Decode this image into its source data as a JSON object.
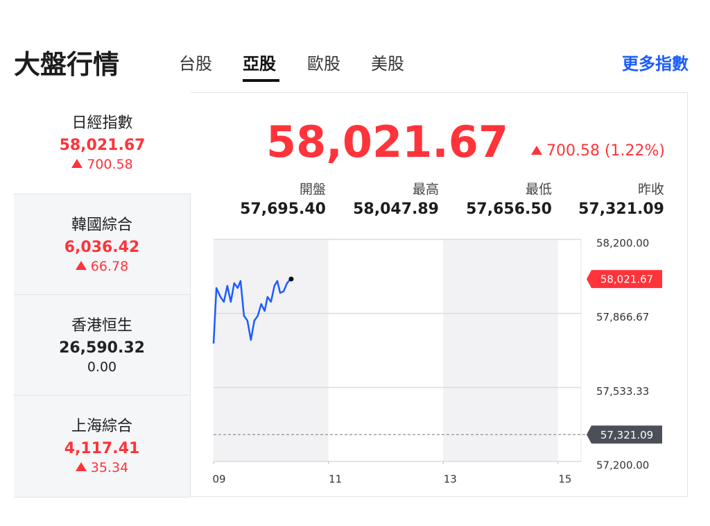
{
  "header": {
    "title": "大盤行情",
    "tabs": [
      "台股",
      "亞股",
      "歐股",
      "美股"
    ],
    "selected_tab": 1,
    "more_link": "更多指數"
  },
  "indices": [
    {
      "name": "日經指數",
      "value": "58,021.67",
      "change": "700.58",
      "direction": "up"
    },
    {
      "name": "韓國綜合",
      "value": "6,036.42",
      "change": "66.78",
      "direction": "up"
    },
    {
      "name": "香港恒生",
      "value": "26,590.32",
      "change": "0.00",
      "direction": "flat"
    },
    {
      "name": "上海綜合",
      "value": "4,117.41",
      "change": "35.34",
      "direction": "up"
    }
  ],
  "selected_index": 0,
  "quote": {
    "price": "58,021.67",
    "change": "700.58 (1.22%)",
    "direction": "up",
    "stats": [
      {
        "label": "開盤",
        "value": "57,695.40"
      },
      {
        "label": "最高",
        "value": "58,047.89"
      },
      {
        "label": "最低",
        "value": "57,656.50"
      },
      {
        "label": "昨收",
        "value": "57,321.09"
      }
    ]
  },
  "chart_data": {
    "type": "line",
    "color": "#1a5cff",
    "x": [
      9.0,
      9.05,
      9.12,
      9.18,
      9.24,
      9.3,
      9.36,
      9.42,
      9.47,
      9.53,
      9.59,
      9.65,
      9.71,
      9.77,
      9.83,
      9.89,
      9.94,
      10.0,
      10.06,
      10.11,
      10.16,
      10.22,
      10.28,
      10.34
    ],
    "values": [
      57731,
      57981,
      57941,
      57919,
      57991,
      57919,
      58003,
      57981,
      58013,
      57856,
      57834,
      57747,
      57834,
      57856,
      57909,
      57878,
      57941,
      57919,
      57991,
      58013,
      57959,
      57966,
      58003,
      58021.67
    ],
    "xlim": [
      9,
      15.4
    ],
    "xticks": [
      {
        "value": 9,
        "label": "09"
      },
      11,
      13,
      15
    ],
    "ylim": [
      57200,
      58200
    ],
    "yticks": [
      {
        "value": 58200,
        "label": "58,200.00"
      },
      {
        "value": 57866.67,
        "label": "57,866.67"
      },
      {
        "value": 57533.33,
        "label": "57,533.33"
      },
      {
        "value": 57200,
        "label": "57,200.00"
      }
    ],
    "grid": true,
    "markers": [
      {
        "value": 58021.67,
        "label": "58,021.67",
        "color": "#ff333a"
      },
      {
        "value": 57321.09,
        "label": "57,321.09",
        "color": "#4b5058",
        "style": "dashed"
      }
    ]
  }
}
